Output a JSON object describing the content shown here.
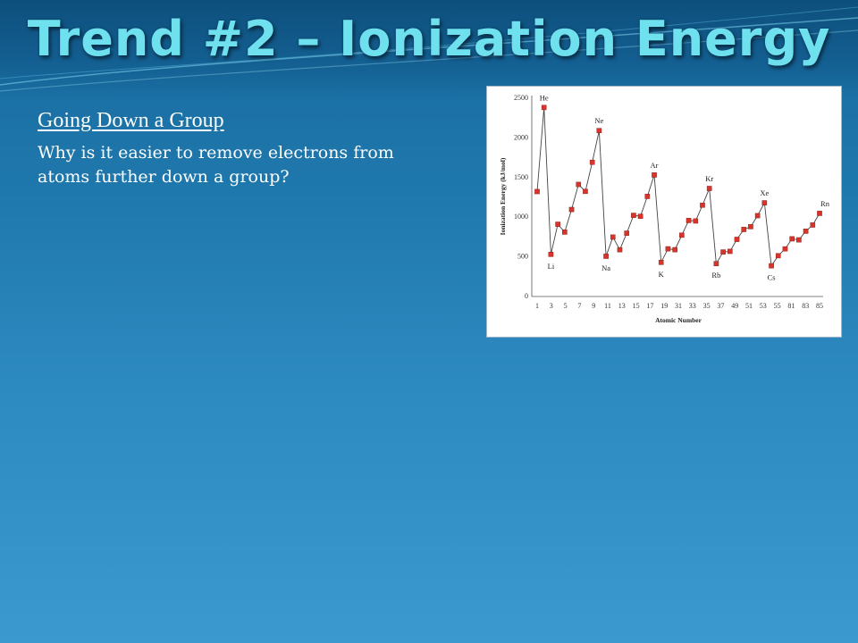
{
  "slide": {
    "title": "Trend #2 – Ionization Energy",
    "heading": "Going  Down a Group",
    "body": "Why is it easier to remove electrons from atoms further down a group?"
  },
  "chart_data": {
    "type": "line",
    "xlabel": "Atomic Number",
    "ylabel": "Ionization Energy (kJ/mol)",
    "ylim": [
      0,
      2500
    ],
    "yticks": [
      0,
      500,
      1000,
      1500,
      2000,
      2500
    ],
    "xtick_labels": [
      "1",
      "3",
      "5",
      "7",
      "9",
      "11",
      "13",
      "15",
      "17",
      "19",
      "31",
      "33",
      "35",
      "37",
      "49",
      "51",
      "53",
      "55",
      "81",
      "83",
      "85"
    ],
    "x_index": [
      0,
      1,
      2,
      3,
      4,
      5,
      6,
      7,
      8,
      9,
      10,
      11,
      12,
      13,
      14,
      15,
      16,
      17,
      18,
      19,
      20,
      21,
      22,
      23,
      24,
      25,
      26,
      27,
      28,
      29,
      30,
      31,
      32,
      33,
      34,
      35,
      36,
      37,
      38,
      39,
      40,
      41
    ],
    "values": [
      1312,
      2372,
      520,
      900,
      801,
      1086,
      1402,
      1314,
      1681,
      2081,
      496,
      738,
      578,
      787,
      1012,
      1000,
      1251,
      1521,
      419,
      590,
      579,
      762,
      947,
      941,
      1140,
      1351,
      403,
      550,
      558,
      709,
      834,
      869,
      1008,
      1170,
      376,
      503,
      589,
      716,
      703,
      812,
      890,
      1037
    ],
    "annotations": [
      {
        "label": "He",
        "index": 1
      },
      {
        "label": "Ne",
        "index": 9
      },
      {
        "label": "Ar",
        "index": 17
      },
      {
        "label": "Kr",
        "index": 25
      },
      {
        "label": "Xe",
        "index": 33
      },
      {
        "label": "Rn",
        "index": 41
      },
      {
        "label": "Li",
        "index": 2
      },
      {
        "label": "Na",
        "index": 10
      },
      {
        "label": "K",
        "index": 18
      },
      {
        "label": "Rb",
        "index": 26
      },
      {
        "label": "Cs",
        "index": 34
      }
    ],
    "line_color": "#444444",
    "marker_color": "#d9342b"
  }
}
